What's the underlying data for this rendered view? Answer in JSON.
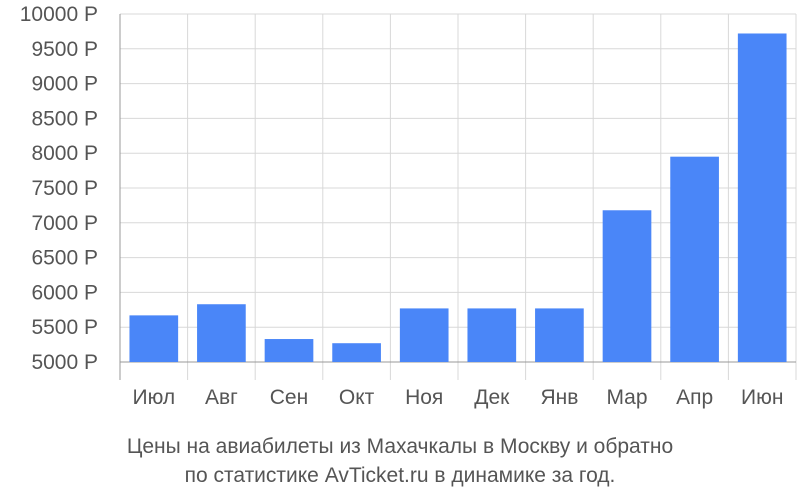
{
  "caption": {
    "line1": "Цены на авиабилеты из Махачкалы в Москву и обратно",
    "line2": "по статистике AvTicket.ru в динамике за год."
  },
  "colors": {
    "bar": "#4a86f8",
    "grid": "#d8d8d8",
    "axis": "#999999",
    "text": "#555555"
  },
  "chart_data": {
    "type": "bar",
    "categories": [
      "Июл",
      "Авг",
      "Сен",
      "Окт",
      "Ноя",
      "Дек",
      "Янв",
      "Мар",
      "Апр",
      "Июн"
    ],
    "values": [
      5670,
      5830,
      5330,
      5270,
      5770,
      5770,
      5770,
      7180,
      7950,
      9720
    ],
    "ylim": [
      5000,
      10000
    ],
    "yticks": [
      5000,
      5500,
      6000,
      6500,
      7000,
      7500,
      8000,
      8500,
      9000,
      9500,
      10000
    ],
    "ytick_labels": [
      "5000 Р",
      "5500 Р",
      "6000 Р",
      "6500 Р",
      "7000 Р",
      "7500 Р",
      "8000 Р",
      "8500 Р",
      "9000 Р",
      "9500 Р",
      "10000 Р"
    ],
    "grid": true
  }
}
